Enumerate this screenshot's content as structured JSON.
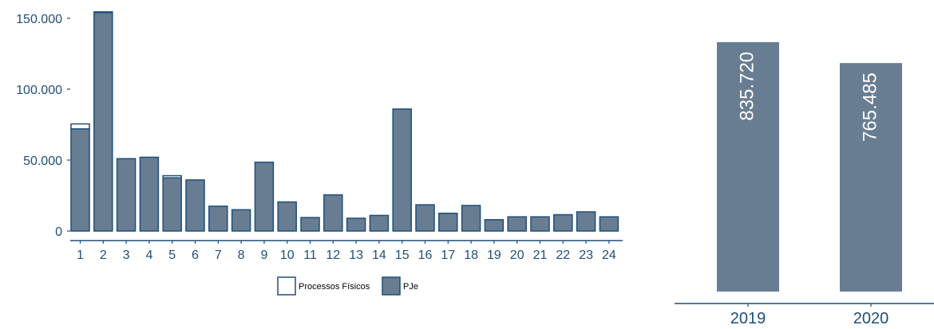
{
  "colors": {
    "axis": "#1f4e79",
    "tick_text": "#1f4e79",
    "bar_fill": "#687d92",
    "bar_stroke": "#1f4e79",
    "physical_fill": "#ffffff",
    "bar_label": "#ffffff",
    "legend_text": "#000000"
  },
  "chart_data": [
    {
      "type": "bar",
      "stacked": true,
      "categories": [
        "1",
        "2",
        "3",
        "4",
        "5",
        "6",
        "7",
        "8",
        "9",
        "10",
        "11",
        "12",
        "13",
        "14",
        "15",
        "16",
        "17",
        "18",
        "19",
        "20",
        "21",
        "22",
        "23",
        "24"
      ],
      "series": [
        {
          "name": "PJe",
          "values": [
            72000,
            154000,
            51000,
            52000,
            37500,
            36000,
            17500,
            15000,
            48500,
            20500,
            9500,
            25500,
            9000,
            11000,
            86000,
            18500,
            12500,
            18000,
            8000,
            10000,
            10000,
            11500,
            13500,
            10000
          ]
        },
        {
          "name": "Processos Físicos",
          "values": [
            3500,
            500,
            0,
            0,
            1500,
            0,
            0,
            0,
            0,
            0,
            0,
            0,
            0,
            0,
            0,
            0,
            0,
            0,
            0,
            0,
            0,
            0,
            0,
            0
          ]
        }
      ],
      "yticks": [
        "150.000",
        "100.000",
        "50.000",
        "0"
      ],
      "ytick_values": [
        150000,
        100000,
        50000,
        0
      ],
      "ylim": [
        0,
        155000
      ],
      "grid": false,
      "legend_position": "bottom"
    },
    {
      "type": "bar",
      "categories": [
        "2019",
        "2020"
      ],
      "values": [
        835720,
        765485
      ],
      "data_labels": [
        "835.720",
        "765.485"
      ],
      "ylim": [
        0,
        870000
      ],
      "grid": false
    }
  ]
}
